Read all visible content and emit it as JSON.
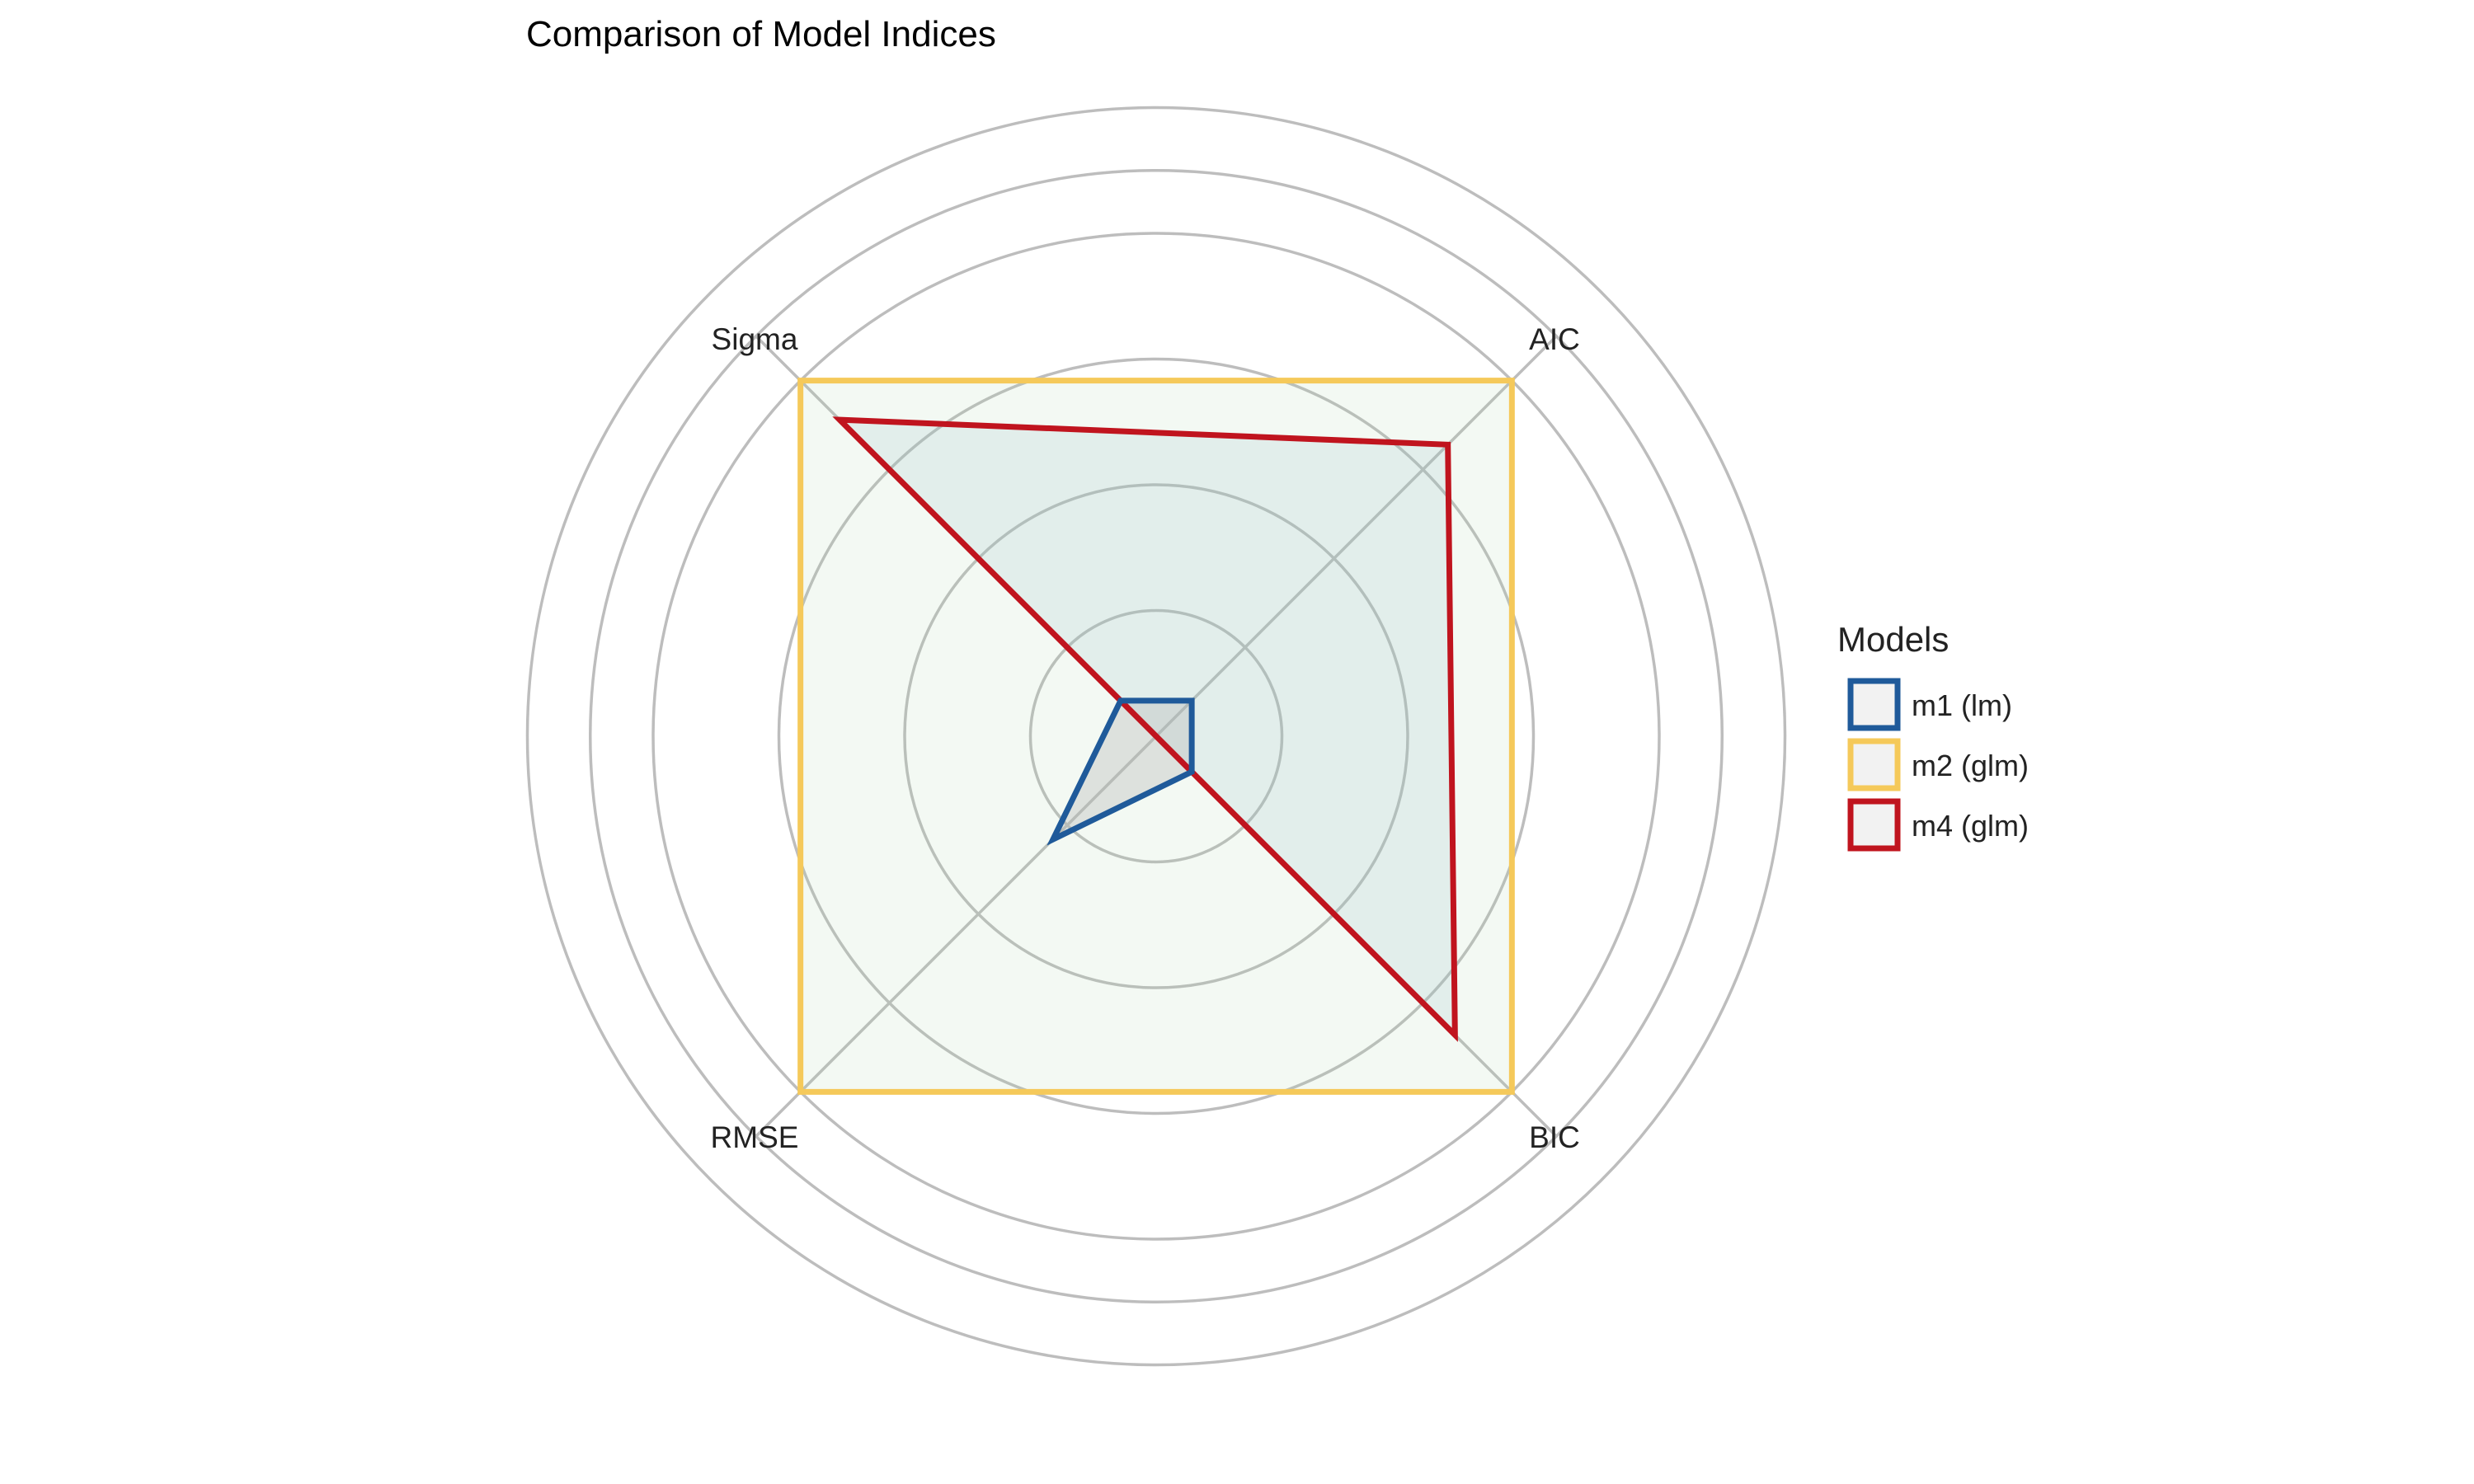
{
  "chart_data": {
    "type": "radar",
    "title": "Comparison of Model Indices",
    "axes": [
      "AIC",
      "BIC",
      "RMSE",
      "Sigma"
    ],
    "rlim": [
      0,
      1.25
    ],
    "grid_levels": [
      0.25,
      0.5,
      0.75,
      1.0,
      1.125,
      1.25
    ],
    "grid": true,
    "legend_title": "Models",
    "legend_placement": "right",
    "series": [
      {
        "name": "m1 (lm)",
        "color": "#1F5A9A",
        "values": [
          0.1,
          0.1,
          0.29,
          0.1
        ]
      },
      {
        "name": "m2 (glm)",
        "color": "#F5C95A",
        "values": [
          1.0,
          1.0,
          1.0,
          1.0
        ]
      },
      {
        "name": "m4 (glm)",
        "color": "#C0141E",
        "values": [
          0.82,
          0.84,
          0.0,
          0.89
        ]
      }
    ]
  }
}
